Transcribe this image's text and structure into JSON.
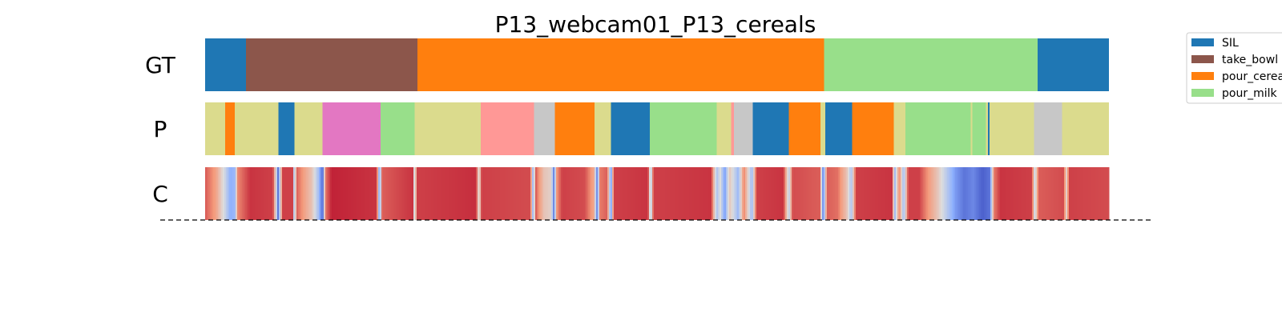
{
  "chart_data": {
    "type": "heatmap",
    "title": "P13_webcam01_P13_cereals",
    "rows": [
      {
        "label": "GT",
        "segments": [
          {
            "start": 0.0,
            "end": 0.045,
            "class": "SIL"
          },
          {
            "start": 0.045,
            "end": 0.235,
            "class": "take_bowl"
          },
          {
            "start": 0.235,
            "end": 0.685,
            "class": "pour_cereals"
          },
          {
            "start": 0.685,
            "end": 0.921,
            "class": "pour_milk"
          },
          {
            "start": 0.921,
            "end": 1.0,
            "class": "SIL"
          }
        ]
      },
      {
        "label": "P",
        "segments": [
          {
            "start": 0.0,
            "end": 0.022,
            "color": "#dbdb8d"
          },
          {
            "start": 0.022,
            "end": 0.033,
            "color": "#ff7f0e"
          },
          {
            "start": 0.033,
            "end": 0.081,
            "color": "#dbdb8d"
          },
          {
            "start": 0.081,
            "end": 0.099,
            "color": "#1f77b4"
          },
          {
            "start": 0.099,
            "end": 0.13,
            "color": "#dbdb8d"
          },
          {
            "start": 0.13,
            "end": 0.194,
            "color": "#e377c2"
          },
          {
            "start": 0.194,
            "end": 0.232,
            "color": "#98df8a"
          },
          {
            "start": 0.232,
            "end": 0.305,
            "color": "#dbdb8d"
          },
          {
            "start": 0.305,
            "end": 0.364,
            "color": "#ff9896"
          },
          {
            "start": 0.364,
            "end": 0.387,
            "color": "#c7c7c7"
          },
          {
            "start": 0.387,
            "end": 0.431,
            "color": "#ff7f0e"
          },
          {
            "start": 0.431,
            "end": 0.449,
            "color": "#dbdb8d"
          },
          {
            "start": 0.449,
            "end": 0.492,
            "color": "#1f77b4"
          },
          {
            "start": 0.492,
            "end": 0.566,
            "color": "#98df8a"
          },
          {
            "start": 0.566,
            "end": 0.582,
            "color": "#dbdb8d"
          },
          {
            "start": 0.582,
            "end": 0.585,
            "color": "#ff9896"
          },
          {
            "start": 0.585,
            "end": 0.606,
            "color": "#c7c7c7"
          },
          {
            "start": 0.606,
            "end": 0.646,
            "color": "#1f77b4"
          },
          {
            "start": 0.646,
            "end": 0.681,
            "color": "#ff7f0e"
          },
          {
            "start": 0.681,
            "end": 0.686,
            "color": "#dbdb8d"
          },
          {
            "start": 0.686,
            "end": 0.716,
            "color": "#1f77b4"
          },
          {
            "start": 0.716,
            "end": 0.762,
            "color": "#ff7f0e"
          },
          {
            "start": 0.762,
            "end": 0.775,
            "color": "#dbdb8d"
          },
          {
            "start": 0.775,
            "end": 0.847,
            "color": "#98df8a"
          },
          {
            "start": 0.847,
            "end": 0.849,
            "color": "#dbdb8d"
          },
          {
            "start": 0.849,
            "end": 0.864,
            "color": "#98df8a"
          },
          {
            "start": 0.864,
            "end": 0.866,
            "color": "#dbdb8d"
          },
          {
            "start": 0.866,
            "end": 0.868,
            "color": "#1f77b4"
          },
          {
            "start": 0.868,
            "end": 0.917,
            "color": "#dbdb8d"
          },
          {
            "start": 0.917,
            "end": 0.948,
            "color": "#c7c7c7"
          },
          {
            "start": 0.948,
            "end": 1.0,
            "color": "#dbdb8d"
          }
        ]
      },
      {
        "label": "C",
        "colormap": "coolwarm",
        "confidence_keypoints": [
          [
            0.0,
            0.86
          ],
          [
            0.012,
            0.72
          ],
          [
            0.022,
            0.45
          ],
          [
            0.028,
            0.25
          ],
          [
            0.033,
            0.3
          ],
          [
            0.036,
            0.78
          ],
          [
            0.05,
            0.92
          ],
          [
            0.075,
            0.9
          ],
          [
            0.079,
            0.42
          ],
          [
            0.081,
            0.05
          ],
          [
            0.083,
            0.5
          ],
          [
            0.086,
            0.9
          ],
          [
            0.097,
            0.9
          ],
          [
            0.099,
            0.2
          ],
          [
            0.101,
            0.85
          ],
          [
            0.118,
            0.6
          ],
          [
            0.125,
            0.35
          ],
          [
            0.13,
            0.05
          ],
          [
            0.133,
            0.8
          ],
          [
            0.14,
            0.95
          ],
          [
            0.19,
            0.92
          ],
          [
            0.193,
            0.15
          ],
          [
            0.196,
            0.85
          ],
          [
            0.23,
            0.92
          ],
          [
            0.232,
            0.3
          ],
          [
            0.234,
            0.9
          ],
          [
            0.3,
            0.93
          ],
          [
            0.303,
            0.45
          ],
          [
            0.306,
            0.9
          ],
          [
            0.36,
            0.88
          ],
          [
            0.363,
            0.25
          ],
          [
            0.366,
            0.85
          ],
          [
            0.375,
            0.6
          ],
          [
            0.383,
            0.55
          ],
          [
            0.386,
            0.1
          ],
          [
            0.389,
            0.75
          ],
          [
            0.395,
            0.9
          ],
          [
            0.42,
            0.88
          ],
          [
            0.43,
            0.7
          ],
          [
            0.434,
            0.1
          ],
          [
            0.437,
            0.8
          ],
          [
            0.445,
            0.85
          ],
          [
            0.449,
            0.15
          ],
          [
            0.452,
            0.9
          ],
          [
            0.49,
            0.92
          ],
          [
            0.493,
            0.3
          ],
          [
            0.496,
            0.9
          ],
          [
            0.56,
            0.92
          ],
          [
            0.566,
            0.35
          ],
          [
            0.57,
            0.5
          ],
          [
            0.575,
            0.2
          ],
          [
            0.58,
            0.6
          ],
          [
            0.585,
            0.45
          ],
          [
            0.59,
            0.3
          ],
          [
            0.596,
            0.8
          ],
          [
            0.605,
            0.3
          ],
          [
            0.61,
            0.9
          ],
          [
            0.64,
            0.92
          ],
          [
            0.646,
            0.4
          ],
          [
            0.65,
            0.88
          ],
          [
            0.68,
            0.85
          ],
          [
            0.684,
            0.1
          ],
          [
            0.688,
            0.85
          ],
          [
            0.7,
            0.82
          ],
          [
            0.71,
            0.6
          ],
          [
            0.715,
            0.35
          ],
          [
            0.72,
            0.9
          ],
          [
            0.76,
            0.92
          ],
          [
            0.763,
            0.3
          ],
          [
            0.768,
            0.8
          ],
          [
            0.773,
            0.3
          ],
          [
            0.778,
            0.9
          ],
          [
            0.79,
            0.9
          ],
          [
            0.8,
            0.75
          ],
          [
            0.81,
            0.6
          ],
          [
            0.82,
            0.4
          ],
          [
            0.83,
            0.2
          ],
          [
            0.84,
            0.1
          ],
          [
            0.85,
            0.15
          ],
          [
            0.86,
            0.05
          ],
          [
            0.868,
            0.1
          ],
          [
            0.873,
            0.8
          ],
          [
            0.88,
            0.92
          ],
          [
            0.915,
            0.9
          ],
          [
            0.918,
            0.4
          ],
          [
            0.922,
            0.85
          ],
          [
            0.95,
            0.88
          ],
          [
            0.953,
            0.55
          ],
          [
            0.956,
            0.9
          ],
          [
            1.0,
            0.88
          ]
        ]
      }
    ],
    "legend": {
      "position": "top-right",
      "entries": [
        {
          "label": "SIL",
          "color": "#1f77b4"
        },
        {
          "label": "take_bowl",
          "color": "#8c564b"
        },
        {
          "label": "pour_cereals",
          "color": "#ff7f0e"
        },
        {
          "label": "pour_milk",
          "color": "#98df8a"
        }
      ]
    },
    "grid": false
  }
}
